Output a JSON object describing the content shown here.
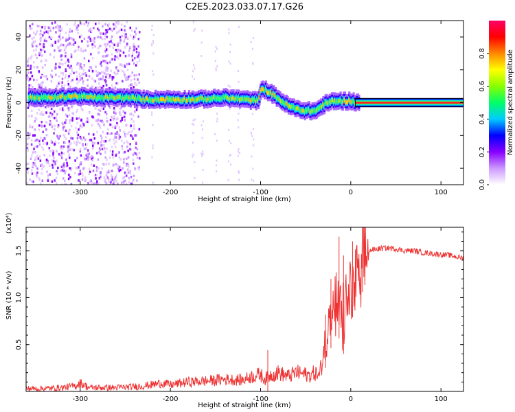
{
  "title": "C2E5.2023.033.07.17.G26",
  "chart_data": [
    {
      "type": "heatmap",
      "xlabel": "Height of straight line (km)",
      "ylabel": "Frequency (Hz)",
      "xlim": [
        -360,
        125
      ],
      "ylim": [
        -50,
        50
      ],
      "xticks": [
        -300,
        -200,
        -100,
        0,
        100
      ],
      "yticks": [
        -40,
        -20,
        0,
        20,
        40
      ],
      "colorbar": {
        "label": "Normalized spectral amplitude",
        "range": [
          0.0,
          1.0
        ],
        "ticks": [
          0.0,
          0.2,
          0.4,
          0.6,
          0.8
        ],
        "colors": [
          "#ffffff",
          "#cc99ff",
          "#8800ff",
          "#0000ff",
          "#00ccff",
          "#00ff66",
          "#88ff00",
          "#ffff00",
          "#ff8800",
          "#ff0000",
          "#ff0066"
        ]
      },
      "ridge": {
        "x": [
          -355,
          -330,
          -310,
          -280,
          -250,
          -230,
          -200,
          -170,
          -140,
          -120,
          -103,
          -100,
          -90,
          -80,
          -70,
          -60,
          -50,
          -40,
          -35,
          -30,
          -20,
          -10,
          0,
          5,
          125
        ],
        "y": [
          3,
          3,
          4,
          3,
          3,
          2,
          2,
          2,
          3,
          2,
          1,
          9,
          6,
          2,
          -2,
          -4,
          -5,
          -5,
          -3,
          -1,
          1,
          1,
          1,
          0,
          0
        ]
      },
      "scatter_noise_region": {
        "x": [
          -360,
          -235
        ],
        "y": [
          -50,
          50
        ]
      }
    },
    {
      "type": "line",
      "xlabel": "Height of straight line (km)",
      "ylabel": "SNR (10 * v/v)",
      "yscale_label": "(x10⁴)",
      "xlim": [
        -360,
        125
      ],
      "ylim": [
        0,
        1.75
      ],
      "xticks": [
        -300,
        -200,
        -100,
        0,
        100
      ],
      "yticks": [
        0.5,
        1.0,
        1.5
      ],
      "ytick_labels": [
        "0.5",
        "1.0",
        "1.5"
      ],
      "color": "#ee3333",
      "series": [
        {
          "x": [
            -360,
            -340,
            -320,
            -305,
            -300,
            -290,
            -260,
            -240,
            -220,
            -210,
            -200,
            -180,
            -160,
            -140,
            -120,
            -110,
            -100,
            -95,
            -90,
            -80,
            -70,
            -60,
            -50,
            -45,
            -40,
            -35,
            -30,
            -28,
            -25,
            -20,
            -15,
            -12,
            -8,
            -5,
            0,
            5,
            10,
            15,
            20,
            30,
            40,
            50,
            60,
            70,
            80,
            90,
            100,
            110,
            125
          ],
          "y": [
            0.03,
            0.03,
            0.04,
            0.06,
            0.09,
            0.04,
            0.04,
            0.05,
            0.07,
            0.09,
            0.07,
            0.1,
            0.11,
            0.13,
            0.12,
            0.16,
            0.18,
            0.13,
            0.17,
            0.2,
            0.16,
            0.2,
            0.18,
            0.17,
            0.2,
            0.16,
            0.4,
            0.55,
            0.7,
            0.8,
            0.9,
            0.85,
            0.7,
            0.95,
            1.05,
            1.15,
            1.3,
            1.4,
            1.5,
            1.52,
            1.53,
            1.52,
            1.5,
            1.5,
            1.48,
            1.47,
            1.46,
            1.45,
            1.42
          ]
        }
      ],
      "spikes": [
        {
          "x": -92,
          "y": 0.44
        },
        {
          "x": -28,
          "y": 0.82
        },
        {
          "x": -22,
          "y": 1.2
        },
        {
          "x": -13,
          "y": 1.65
        },
        {
          "x": -8,
          "y": 1.45
        },
        {
          "x": 2,
          "y": 1.6
        },
        {
          "x": 13,
          "y": 1.75
        }
      ]
    }
  ]
}
